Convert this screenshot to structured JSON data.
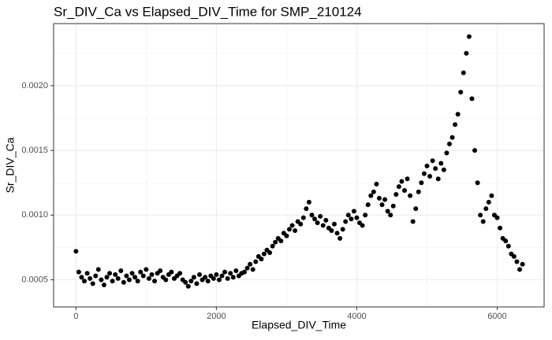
{
  "chart_data": {
    "type": "scatter",
    "title": "Sr_DIV_Ca vs Elapsed_DIV_Time for SMP_210124",
    "x_label": "Elapsed_DIV_Time",
    "y_label": "Sr_DIV_Ca",
    "color": "#000000",
    "grid": true,
    "xlim": [
      -318,
      6668
    ],
    "xticks": [
      0,
      2000,
      4000,
      6000
    ],
    "xminor": [
      1000,
      3000,
      5000
    ],
    "ylim": [
      0.00029,
      0.00248
    ],
    "yticks": [
      {
        "value": 0.0005,
        "label": "0.0005"
      },
      {
        "value": 0.001,
        "label": "0.0010"
      },
      {
        "value": 0.0015,
        "label": "0.0015"
      },
      {
        "value": 0.002,
        "label": "0.0020"
      }
    ],
    "yminor": [
      0.00075,
      0.00125,
      0.00175,
      0.00225
    ],
    "x": [
      0,
      40,
      80,
      120,
      160,
      200,
      240,
      280,
      320,
      360,
      400,
      440,
      480,
      520,
      560,
      600,
      640,
      680,
      720,
      760,
      800,
      840,
      880,
      920,
      960,
      1000,
      1040,
      1080,
      1120,
      1160,
      1200,
      1240,
      1280,
      1320,
      1360,
      1400,
      1440,
      1480,
      1520,
      1560,
      1600,
      1640,
      1680,
      1720,
      1760,
      1800,
      1840,
      1880,
      1920,
      1960,
      2000,
      2040,
      2080,
      2120,
      2160,
      2200,
      2240,
      2280,
      2320,
      2360,
      2400,
      2440,
      2480,
      2520,
      2560,
      2600,
      2640,
      2680,
      2720,
      2760,
      2800,
      2840,
      2880,
      2920,
      2960,
      3000,
      3040,
      3080,
      3120,
      3160,
      3200,
      3240,
      3280,
      3320,
      3360,
      3400,
      3440,
      3480,
      3520,
      3560,
      3600,
      3640,
      3680,
      3720,
      3760,
      3800,
      3840,
      3880,
      3920,
      3960,
      4000,
      4040,
      4080,
      4120,
      4160,
      4200,
      4240,
      4280,
      4320,
      4360,
      4400,
      4440,
      4480,
      4520,
      4560,
      4600,
      4640,
      4680,
      4720,
      4760,
      4800,
      4840,
      4880,
      4920,
      4960,
      5000,
      5040,
      5080,
      5120,
      5160,
      5200,
      5240,
      5280,
      5320,
      5360,
      5400,
      5440,
      5480,
      5520,
      5560,
      5600,
      5640,
      5680,
      5720,
      5760,
      5800,
      5840,
      5880,
      5920,
      5960,
      6000,
      6040,
      6080,
      6120,
      6160,
      6200,
      6240,
      6280,
      6320,
      6360
    ],
    "values": [
      0.00072,
      0.00056,
      0.00052,
      0.00049,
      0.00055,
      0.00051,
      0.00047,
      0.00053,
      0.00058,
      0.0005,
      0.00046,
      0.00052,
      0.00055,
      0.00049,
      0.00054,
      0.00051,
      0.00057,
      0.00048,
      0.00053,
      0.0005,
      0.00055,
      0.00052,
      0.00049,
      0.00056,
      0.00053,
      0.00058,
      0.00051,
      0.00054,
      0.00049,
      0.00055,
      0.00057,
      0.00052,
      0.0005,
      0.00054,
      0.00056,
      0.00051,
      0.00053,
      0.00055,
      0.0005,
      0.00048,
      0.00045,
      0.00049,
      0.00052,
      0.00047,
      0.00054,
      0.0005,
      0.00052,
      0.00049,
      0.00053,
      0.00051,
      0.00054,
      0.0005,
      0.00053,
      0.00056,
      0.00051,
      0.00055,
      0.00052,
      0.00057,
      0.00053,
      0.00055,
      0.00056,
      0.00059,
      0.00062,
      0.00058,
      0.00064,
      0.00068,
      0.00066,
      0.0007,
      0.00073,
      0.00071,
      0.00076,
      0.00079,
      0.00082,
      0.0008,
      0.00086,
      0.00084,
      0.00089,
      0.00092,
      0.00088,
      0.00095,
      0.00093,
      0.00098,
      0.00105,
      0.0011,
      0.001,
      0.00097,
      0.00094,
      0.00099,
      0.00092,
      0.00096,
      0.0009,
      0.00088,
      0.00093,
      0.00086,
      0.00082,
      0.00089,
      0.00095,
      0.001,
      0.00097,
      0.00103,
      0.00098,
      0.00094,
      0.00092,
      0.001,
      0.00108,
      0.00115,
      0.00118,
      0.00124,
      0.00113,
      0.00108,
      0.00112,
      0.00103,
      0.001,
      0.00107,
      0.00116,
      0.00122,
      0.00126,
      0.00119,
      0.00128,
      0.00115,
      0.00095,
      0.00105,
      0.00118,
      0.00125,
      0.00132,
      0.00138,
      0.0013,
      0.00142,
      0.00136,
      0.00128,
      0.0014,
      0.00135,
      0.00148,
      0.00155,
      0.0016,
      0.0017,
      0.00178,
      0.00195,
      0.0021,
      0.00225,
      0.00238,
      0.0019,
      0.0015,
      0.00125,
      0.001,
      0.00095,
      0.00105,
      0.0011,
      0.00115,
      0.001,
      0.00098,
      0.0009,
      0.00082,
      0.0008,
      0.00076,
      0.0007,
      0.00068,
      0.00064,
      0.00058,
      0.00062
    ]
  }
}
